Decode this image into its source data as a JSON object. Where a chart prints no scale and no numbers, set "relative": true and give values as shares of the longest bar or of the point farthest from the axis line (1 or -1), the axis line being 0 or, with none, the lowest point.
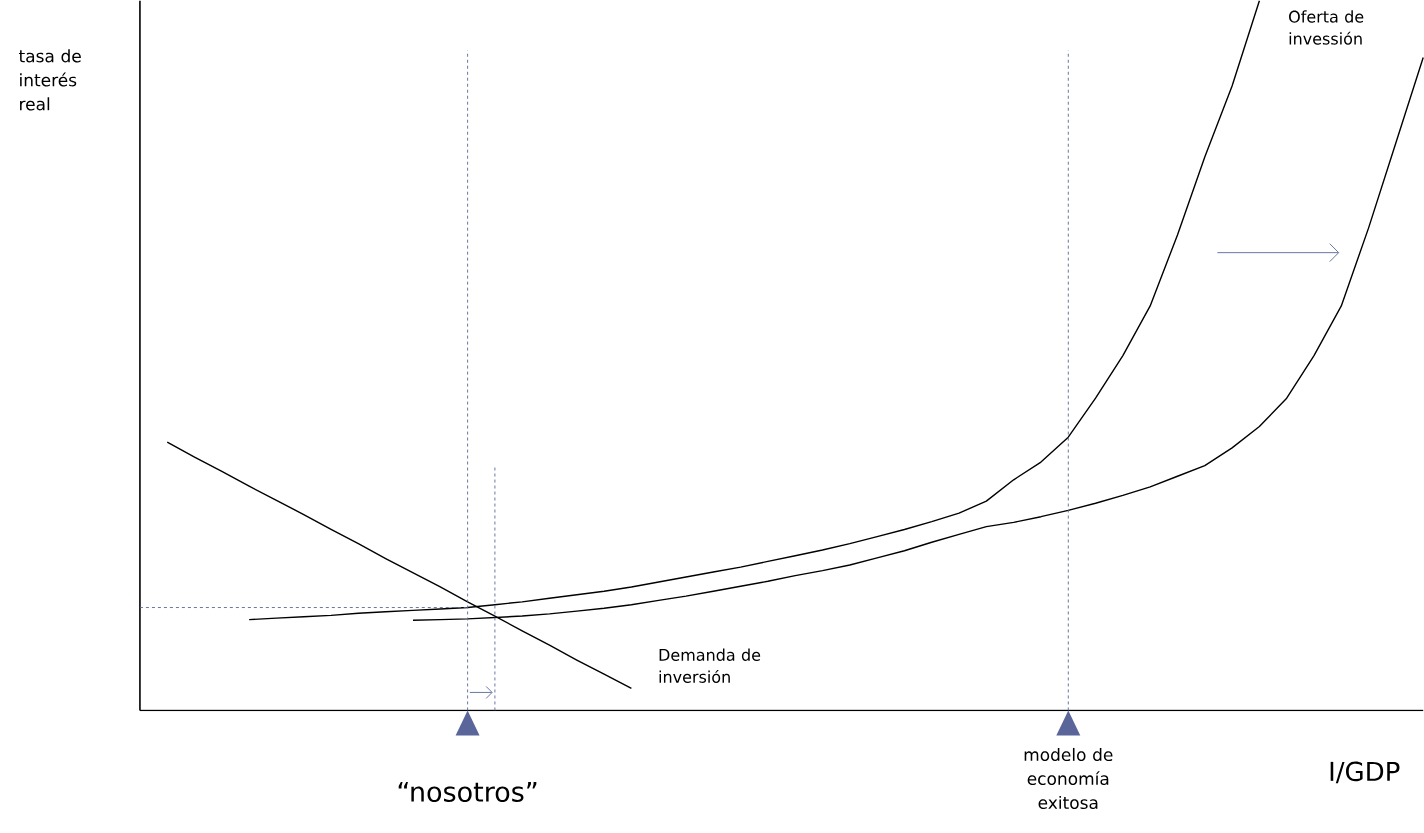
{
  "chart_data": {
    "type": "line",
    "relative": true,
    "xlabel": "I/GDP",
    "ylabel": "tasa de interés real",
    "categories": [
      null,
      null,
      null,
      null,
      null,
      null,
      null,
      null,
      null,
      null,
      null,
      null,
      null,
      null,
      null,
      null,
      null,
      null,
      null,
      null,
      null,
      null,
      null,
      null,
      null,
      null,
      null,
      null,
      null,
      null,
      null,
      null,
      null,
      null,
      null,
      null,
      null,
      null,
      null,
      null,
      null,
      null,
      null,
      null,
      null,
      null,
      null,
      null
    ],
    "series": [
      {
        "color": "#000000",
        "values": [
          null,
          null,
          null,
          null,
          0.128,
          0.13,
          0.132,
          0.134,
          0.137,
          0.139,
          0.141,
          0.143,
          0.145,
          0.149,
          0.153,
          0.158,
          0.163,
          0.168,
          0.174,
          0.181,
          0.188,
          0.195,
          0.202,
          0.21,
          0.218,
          0.226,
          0.235,
          0.245,
          0.255,
          0.266,
          0.278,
          0.295,
          0.325,
          0.35,
          0.385,
          0.44,
          0.5,
          0.57,
          0.67,
          0.78,
          0.88,
          1.0,
          null,
          null,
          null,
          null,
          null,
          null
        ]
      },
      {
        "color": "#000000",
        "values": [
          null,
          null,
          null,
          null,
          null,
          null,
          null,
          null,
          null,
          null,
          0.127,
          0.128,
          0.129,
          0.131,
          0.133,
          0.136,
          0.14,
          0.144,
          0.149,
          0.155,
          0.161,
          0.168,
          0.175,
          0.182,
          0.19,
          0.197,
          0.205,
          0.215,
          0.225,
          0.237,
          0.248,
          0.259,
          0.265,
          0.273,
          0.282,
          0.292,
          0.303,
          0.315,
          0.33,
          0.345,
          0.37,
          0.4,
          0.44,
          0.5,
          0.57,
          0.68,
          0.8,
          0.92
        ]
      },
      {
        "color": "#000000",
        "values": [
          null,
          0.378,
          0.357,
          0.337,
          0.316,
          0.296,
          0.276,
          0.255,
          0.235,
          0.214,
          0.194,
          0.174,
          0.153,
          0.133,
          0.112,
          0.092,
          0.071,
          0.051,
          0.031,
          null,
          null,
          null,
          null,
          null,
          null,
          null,
          null,
          null,
          null,
          null,
          null,
          null,
          null,
          null,
          null,
          null,
          null,
          null,
          null,
          null,
          null,
          null,
          null,
          null,
          null,
          null,
          null,
          null
        ]
      }
    ],
    "ref_lines": [
      {
        "axis": "y",
        "value": 0.145,
        "color": "#5a6699",
        "line_style": "dashed"
      }
    ],
    "annotations": [
      "Oferta de invessión",
      "Demanda de inversión",
      "“nosotros”",
      "modelo de economía exitosa"
    ]
  }
}
